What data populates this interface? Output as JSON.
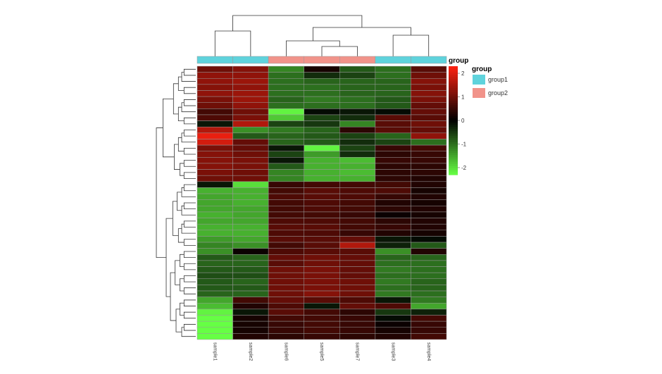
{
  "chart_data": {
    "type": "heatmap",
    "title": "",
    "xlabel": "",
    "ylabel": "",
    "columns": [
      "sample1",
      "sample2",
      "sample6",
      "sample5",
      "sample7",
      "sample3",
      "sample4"
    ],
    "column_groups": [
      "group1",
      "group1",
      "group2",
      "group2",
      "group2",
      "group1",
      "group1"
    ],
    "annotation": {
      "title": "group",
      "legend_title": "group",
      "levels": [
        {
          "name": "group1",
          "color": "#5fd3dc"
        },
        {
          "name": "group2",
          "color": "#f1938a"
        }
      ]
    },
    "color_scale": {
      "min": -2.3,
      "max": 2.3,
      "low": "#66ff44",
      "mid": "#000000",
      "high": "#ff2211",
      "ticks": [
        2,
        1,
        0,
        -1,
        -2
      ]
    },
    "values": [
      [
        1.0,
        1.2,
        -1.2,
        0.2,
        -0.8,
        -1.0,
        0.8
      ],
      [
        1.3,
        1.3,
        -1.0,
        -0.4,
        -0.6,
        -1.0,
        1.0
      ],
      [
        1.3,
        1.4,
        -1.0,
        -0.9,
        -0.9,
        -0.9,
        1.2
      ],
      [
        1.2,
        1.3,
        -1.0,
        -1.0,
        -0.9,
        -0.9,
        1.1
      ],
      [
        1.3,
        1.4,
        -1.0,
        -1.0,
        -0.9,
        -0.9,
        1.2
      ],
      [
        1.1,
        1.4,
        -0.9,
        -1.1,
        -1.0,
        -0.8,
        1.1
      ],
      [
        1.0,
        1.3,
        -1.0,
        -1.0,
        -1.0,
        -0.8,
        0.9
      ],
      [
        0.6,
        1.0,
        -2.2,
        -0.1,
        -0.2,
        -0.1,
        0.9
      ],
      [
        0.7,
        1.1,
        -1.8,
        -0.6,
        -0.4,
        0.8,
        0.8
      ],
      [
        -0.2,
        1.6,
        -0.6,
        -0.5,
        -1.2,
        0.8,
        1.0
      ],
      [
        1.6,
        -1.3,
        -1.1,
        -0.9,
        0.4,
        0.8,
        0.9
      ],
      [
        2.1,
        -0.8,
        -0.9,
        -0.8,
        -0.6,
        -0.9,
        1.3
      ],
      [
        1.9,
        0.9,
        -0.9,
        -0.8,
        -0.4,
        -0.6,
        -1.0
      ],
      [
        1.1,
        0.9,
        -0.2,
        -2.2,
        -0.6,
        0.5,
        0.6
      ],
      [
        1.2,
        1.0,
        -0.6,
        -1.4,
        -0.4,
        0.4,
        0.5
      ],
      [
        1.2,
        1.1,
        -0.2,
        -1.6,
        -1.7,
        0.5,
        0.5
      ],
      [
        1.2,
        1.1,
        -0.8,
        -1.6,
        -1.6,
        0.4,
        0.4
      ],
      [
        1.1,
        1.0,
        -1.2,
        -1.6,
        -1.7,
        0.4,
        0.4
      ],
      [
        1.0,
        1.0,
        -1.2,
        -1.6,
        -1.6,
        0.4,
        0.3
      ],
      [
        -0.2,
        -2.0,
        0.5,
        0.6,
        0.6,
        0.6,
        0.3
      ],
      [
        -1.6,
        -1.6,
        0.6,
        0.8,
        0.7,
        0.7,
        0.2
      ],
      [
        -1.5,
        -1.6,
        0.7,
        0.8,
        0.7,
        0.5,
        0.3
      ],
      [
        -1.5,
        -1.6,
        0.6,
        0.7,
        0.6,
        0.3,
        0.2
      ],
      [
        -1.5,
        -1.5,
        0.6,
        0.7,
        0.6,
        0.4,
        0.3
      ],
      [
        -1.6,
        -1.5,
        0.6,
        0.6,
        0.5,
        0.1,
        0.2
      ],
      [
        -1.5,
        -1.5,
        0.7,
        0.7,
        0.6,
        0.4,
        0.3
      ],
      [
        -1.6,
        -1.6,
        0.8,
        0.8,
        0.6,
        0.5,
        0.3
      ],
      [
        -1.6,
        -1.6,
        0.7,
        0.7,
        0.5,
        0.3,
        0.2
      ],
      [
        -1.4,
        -1.5,
        0.8,
        0.8,
        0.9,
        -0.2,
        -0.1
      ],
      [
        -1.2,
        -1.3,
        0.6,
        0.8,
        1.6,
        -0.3,
        -0.8
      ],
      [
        -1.3,
        0.1,
        0.7,
        0.8,
        0.8,
        -1.3,
        0.3
      ],
      [
        -0.8,
        -0.9,
        0.9,
        1.0,
        0.9,
        -0.9,
        -0.9
      ],
      [
        -0.9,
        -0.9,
        0.8,
        1.0,
        0.9,
        -1.0,
        -1.0
      ],
      [
        -0.8,
        -0.8,
        1.0,
        1.1,
        0.9,
        -1.1,
        -1.0
      ],
      [
        -0.7,
        -0.7,
        1.0,
        1.1,
        0.9,
        -1.0,
        -1.0
      ],
      [
        -0.8,
        -0.9,
        1.0,
        1.1,
        1.0,
        -1.1,
        -0.9
      ],
      [
        -0.8,
        -0.8,
        1.0,
        1.1,
        1.0,
        -1.0,
        -0.9
      ],
      [
        -0.9,
        -0.9,
        1.0,
        1.2,
        1.0,
        -1.1,
        -1.0
      ],
      [
        -1.5,
        0.6,
        0.9,
        0.8,
        0.7,
        -0.2,
        -1.1
      ],
      [
        -1.7,
        0.3,
        0.7,
        -0.2,
        0.9,
        0.7,
        -1.5
      ],
      [
        -2.2,
        -0.2,
        0.8,
        0.6,
        0.4,
        -0.5,
        -0.3
      ],
      [
        -2.3,
        0.2,
        0.6,
        0.6,
        0.5,
        -0.1,
        0.6
      ],
      [
        -2.3,
        0.2,
        0.5,
        0.6,
        0.5,
        0.1,
        0.5
      ],
      [
        -2.4,
        0.2,
        0.5,
        0.6,
        0.5,
        0.2,
        0.5
      ],
      [
        -2.3,
        0.3,
        0.4,
        0.5,
        0.4,
        0.3,
        0.6
      ]
    ]
  }
}
